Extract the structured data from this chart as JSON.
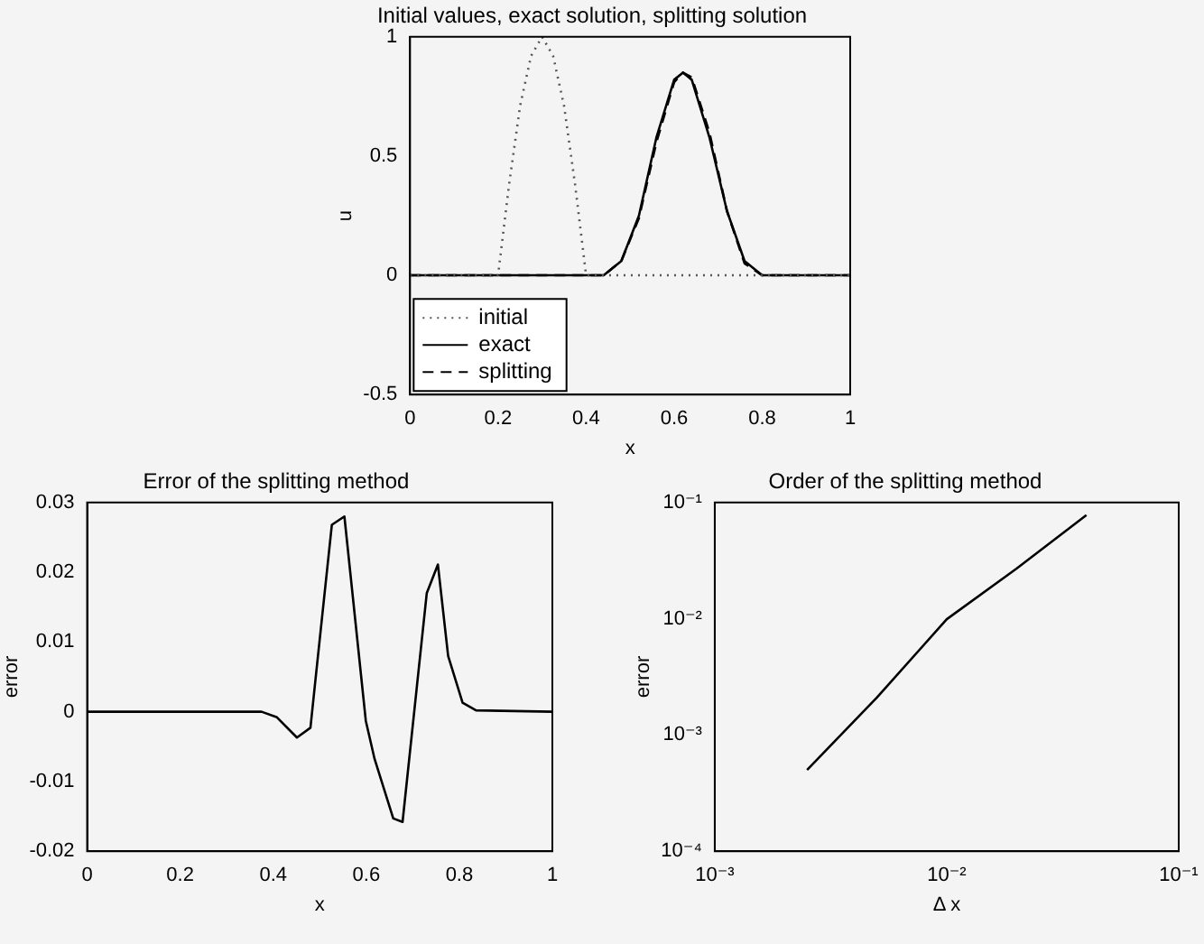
{
  "chart_data": [
    {
      "type": "line",
      "title": "Initial values, exact solution, splitting solution",
      "xlabel": "x",
      "ylabel": "u",
      "xlim": [
        0,
        1
      ],
      "ylim": [
        -0.5,
        1
      ],
      "xticks": [
        0,
        0.2,
        0.4,
        0.6,
        0.8,
        1
      ],
      "yticks": [
        -0.5,
        0,
        0.5,
        1
      ],
      "legend": "bottom left",
      "marker": "none",
      "series": [
        {
          "name": "initial",
          "color": "#555555",
          "line_style": "dotted",
          "x": [
            0,
            0.2,
            0.225,
            0.25,
            0.275,
            0.3,
            0.325,
            0.35,
            0.375,
            0.4,
            1
          ],
          "values": [
            0,
            0,
            0.38,
            0.71,
            0.92,
            1,
            0.92,
            0.71,
            0.38,
            0,
            0
          ]
        },
        {
          "name": "exact",
          "color": "#000000",
          "line_style": "solid",
          "x": [
            0,
            0.44,
            0.48,
            0.52,
            0.56,
            0.6,
            0.62,
            0.64,
            0.68,
            0.72,
            0.76,
            0.8,
            1
          ],
          "values": [
            0,
            0,
            0.06,
            0.25,
            0.58,
            0.82,
            0.85,
            0.82,
            0.58,
            0.27,
            0.06,
            0,
            0
          ]
        },
        {
          "name": "splitting",
          "color": "#000000",
          "line_style": "dashed",
          "x": [
            0,
            0.44,
            0.48,
            0.52,
            0.56,
            0.6,
            0.62,
            0.64,
            0.68,
            0.72,
            0.76,
            0.8,
            1
          ],
          "values": [
            0,
            0,
            0.06,
            0.24,
            0.56,
            0.81,
            0.85,
            0.83,
            0.6,
            0.27,
            0.05,
            0,
            0
          ]
        }
      ]
    },
    {
      "type": "line",
      "title": "Error of the splitting method",
      "xlabel": "x",
      "ylabel": "error",
      "xlim": [
        0,
        1
      ],
      "ylim": [
        -0.02,
        0.03
      ],
      "xticks": [
        0,
        0.2,
        0.4,
        0.6,
        0.8,
        1
      ],
      "yticks": [
        -0.02,
        -0.01,
        0,
        0.01,
        0.02,
        0.03
      ],
      "marker": "none",
      "series": [
        {
          "color": "#000000",
          "line_style": "solid",
          "x": [
            0,
            0.375,
            0.408,
            0.451,
            0.48,
            0.493,
            0.526,
            0.553,
            0.599,
            0.618,
            0.658,
            0.678,
            0.73,
            0.754,
            0.776,
            0.807,
            0.836,
            1
          ],
          "values": [
            0,
            0,
            -0.0008,
            -0.0037,
            -0.0023,
            0.006,
            0.0268,
            0.028,
            -0.0013,
            -0.0068,
            -0.0153,
            -0.0158,
            0.017,
            0.0211,
            0.008,
            0.0013,
            0.0002,
            0
          ]
        }
      ]
    },
    {
      "type": "line",
      "title": "Order of the splitting method",
      "xlabel": "Δ x",
      "ylabel": "error",
      "log": "xy",
      "xlim": [
        0.001,
        0.1
      ],
      "ylim": [
        0.0001,
        0.1
      ],
      "xticks": [
        {
          "value": 0.001,
          "label": "10⁻³"
        },
        {
          "value": 0.01,
          "label": "10⁻²"
        },
        {
          "value": 0.1,
          "label": "10⁻¹"
        }
      ],
      "yticks": [
        {
          "value": 0.0001,
          "label": "10⁻⁴"
        },
        {
          "value": 0.001,
          "label": "10⁻³"
        },
        {
          "value": 0.01,
          "label": "10⁻²"
        },
        {
          "value": 0.1,
          "label": "10⁻¹"
        }
      ],
      "marker": "none",
      "series": [
        {
          "color": "#000000",
          "line_style": "solid",
          "x": [
            0.0025,
            0.005,
            0.01,
            0.02,
            0.04
          ],
          "values": [
            0.0005,
            0.0021,
            0.0099,
            0.027,
            0.078
          ]
        }
      ]
    }
  ]
}
